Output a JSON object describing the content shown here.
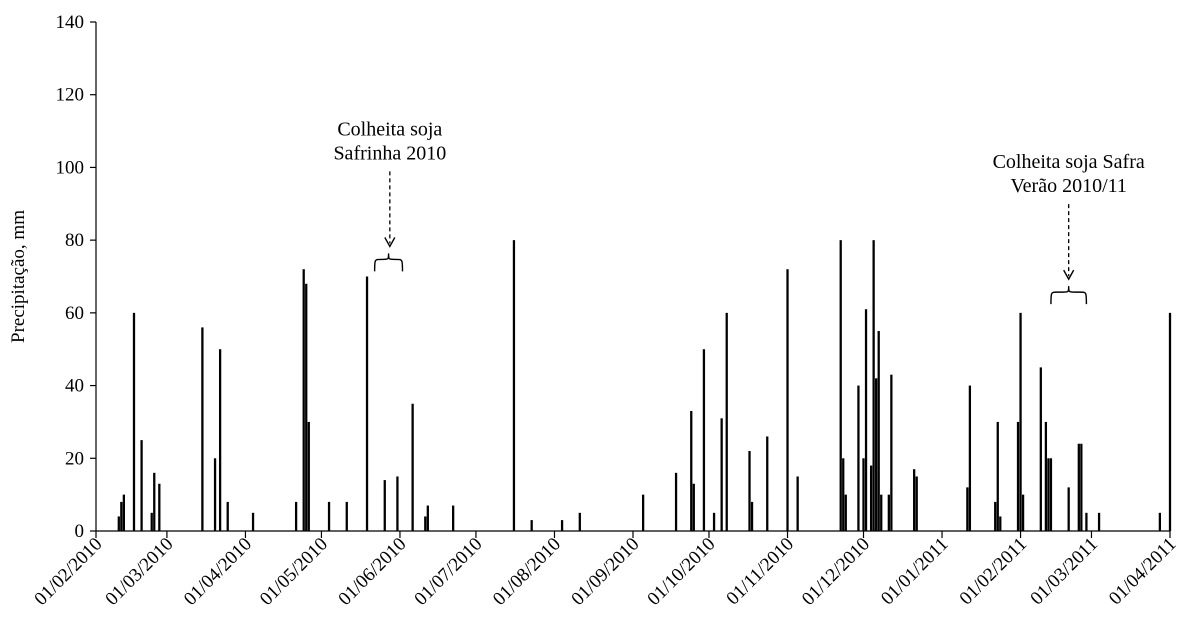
{
  "chart_data": {
    "type": "bar",
    "title": "",
    "xlabel": "",
    "ylabel": "Precipitação, mm",
    "ylim": [
      0,
      140
    ],
    "yticks": [
      0,
      20,
      40,
      60,
      80,
      100,
      120,
      140
    ],
    "xlim": [
      "2010-02-01",
      "2011-04-01"
    ],
    "xtick_labels": [
      "01/02/2010",
      "01/03/2010",
      "01/04/2010",
      "01/05/2010",
      "01/06/2010",
      "01/07/2010",
      "01/08/2010",
      "01/09/2010",
      "01/10/2010",
      "01/11/2010",
      "01/12/2010",
      "01/01/2011",
      "01/02/2011",
      "01/03/2011",
      "01/04/2011"
    ],
    "grid": false,
    "series": [
      {
        "x": [
          "2010-02-10",
          "2010-02-11",
          "2010-02-12",
          "2010-02-16",
          "2010-02-19",
          "2010-02-23",
          "2010-02-24",
          "2010-02-26",
          "2010-03-15",
          "2010-03-20",
          "2010-03-22",
          "2010-03-25",
          "2010-04-04",
          "2010-04-21",
          "2010-04-24",
          "2010-04-25",
          "2010-04-26",
          "2010-05-04",
          "2010-05-11",
          "2010-05-19",
          "2010-05-26",
          "2010-05-31",
          "2010-06-06",
          "2010-06-11",
          "2010-06-12",
          "2010-06-22",
          "2010-07-16",
          "2010-07-23",
          "2010-08-04",
          "2010-08-11",
          "2010-09-05",
          "2010-09-18",
          "2010-09-24",
          "2010-09-25",
          "2010-09-29",
          "2010-10-03",
          "2010-10-06",
          "2010-10-08",
          "2010-10-17",
          "2010-10-18",
          "2010-10-24",
          "2010-11-01",
          "2010-11-05",
          "2010-11-22",
          "2010-11-23",
          "2010-11-24",
          "2010-11-29",
          "2010-12-01",
          "2010-12-02",
          "2010-12-04",
          "2010-12-05",
          "2010-12-06",
          "2010-12-07",
          "2010-12-08",
          "2010-12-11",
          "2010-12-12",
          "2010-12-21",
          "2010-12-22",
          "2011-01-11",
          "2011-01-12",
          "2011-01-22",
          "2011-01-23",
          "2011-01-24",
          "2011-01-31",
          "2011-02-01",
          "2011-02-02",
          "2011-02-09",
          "2011-02-11",
          "2011-02-12",
          "2011-02-13",
          "2011-02-20",
          "2011-02-24",
          "2011-02-25",
          "2011-02-27",
          "2011-03-04",
          "2011-03-28",
          "2011-04-01"
        ],
        "values": [
          4,
          8,
          10,
          60,
          25,
          5,
          16,
          13,
          56,
          20,
          50,
          8,
          5,
          8,
          72,
          68,
          30,
          8,
          8,
          70,
          14,
          15,
          35,
          4,
          7,
          7,
          80,
          3,
          3,
          5,
          10,
          16,
          33,
          13,
          50,
          5,
          31,
          60,
          22,
          8,
          26,
          72,
          15,
          80,
          20,
          10,
          40,
          20,
          61,
          18,
          80,
          42,
          55,
          10,
          10,
          43,
          17,
          15,
          12,
          40,
          8,
          30,
          4,
          30,
          60,
          10,
          45,
          30,
          20,
          20,
          12,
          24,
          24,
          5,
          5,
          5,
          60
        ]
      }
    ],
    "annotations": [
      {
        "lines": [
          "Colheita soja",
          "Safrinha 2010"
        ],
        "arrow_to": "2010-05-28",
        "arrow_y": 78,
        "brace_from": "2010-05-22",
        "brace_to": "2010-06-02"
      },
      {
        "lines": [
          "Colheita soja Safra",
          "Verão 2010/11"
        ],
        "arrow_to": "2011-02-20",
        "arrow_y": 69,
        "brace_from": "2011-02-13",
        "brace_to": "2011-02-27"
      }
    ]
  }
}
